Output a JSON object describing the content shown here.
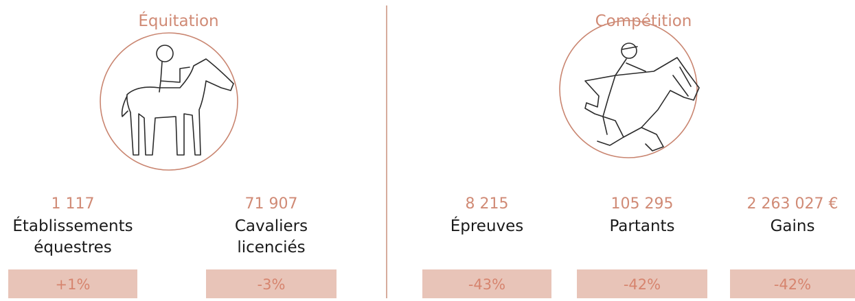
{
  "sections": [
    {
      "title": "Équitation",
      "stats": [
        {
          "value": "1 117",
          "label": [
            "Établissements",
            "équestres"
          ],
          "change": "+1%"
        },
        {
          "value": "71 907",
          "label": [
            "Cavaliers",
            "licenciés"
          ],
          "change": "-3%"
        }
      ]
    },
    {
      "title": "Compétition",
      "stats": [
        {
          "value": "8 215",
          "label": [
            "Épreuves"
          ],
          "change": "-43%"
        },
        {
          "value": "105 295",
          "label": [
            "Partants"
          ],
          "change": "-42%"
        },
        {
          "value": "2 263 027 €",
          "label": [
            "Gains"
          ],
          "change": "-42%"
        }
      ]
    }
  ]
}
